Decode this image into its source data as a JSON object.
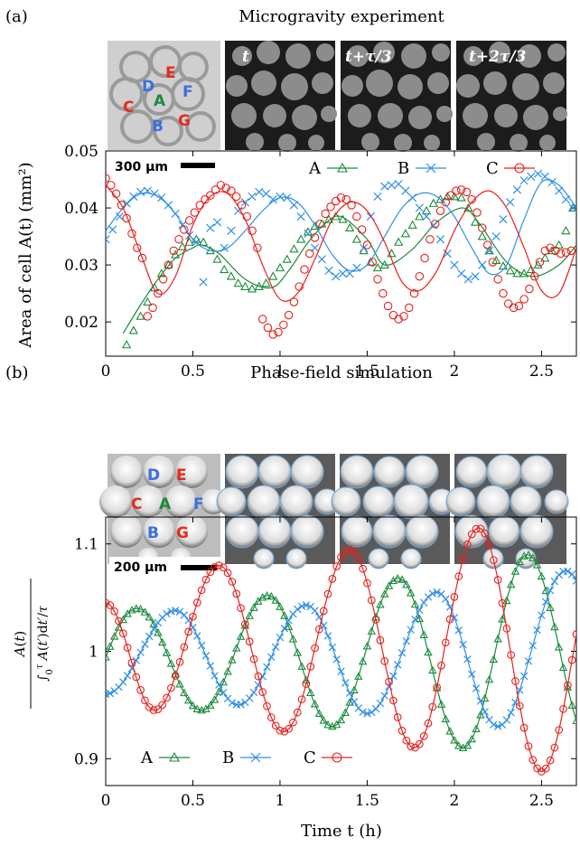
{
  "figure": {
    "panel_a_label": "(a)",
    "panel_b_label": "(b)"
  },
  "chart_data": [
    {
      "type": "scatter",
      "panel": "(a)",
      "title": "Microgravity experiment",
      "ylabel": "Area of cell A(t) (mm²)",
      "xlabel": "",
      "xlim": [
        0,
        2.7
      ],
      "ylim": [
        0.014,
        0.05
      ],
      "xticks": [
        0,
        0.5,
        1,
        1.5,
        2,
        2.5
      ],
      "xtick_labels": [
        "0",
        "0.5",
        "1",
        "1.5",
        "2",
        "2.5"
      ],
      "yticks": [
        0.02,
        0.03,
        0.04,
        0.05
      ],
      "ytick_labels": [
        "0.02",
        "0.03",
        "0.04",
        "0.05"
      ],
      "legend_position": "top-right",
      "scale_bar": "300 µm",
      "image_labels": [
        "t",
        "t+τ/3",
        "t+2τ/3"
      ],
      "cell_labels": [
        "A",
        "B",
        "C",
        "D",
        "E",
        "F",
        "G"
      ],
      "series": [
        {
          "name": "A",
          "color": "#1b8a3c",
          "marker": "triangle",
          "fit": {
            "x": [
              0.1,
              0.2,
              0.3,
              0.4,
              0.5,
              0.55,
              0.65,
              0.8,
              0.95,
              1.05,
              1.15,
              1.25,
              1.35,
              1.5,
              1.6,
              1.75,
              1.9,
              2.05,
              2.15,
              2.3,
              2.45,
              2.6,
              2.7
            ],
            "y": [
              0.018,
              0.023,
              0.0275,
              0.0312,
              0.033,
              0.0335,
              0.032,
              0.0275,
              0.026,
              0.029,
              0.0335,
              0.037,
              0.0385,
              0.0345,
              0.03,
              0.0325,
              0.0375,
              0.04,
              0.037,
              0.0305,
              0.028,
              0.03,
              0.0335
            ]
          },
          "data": {
            "x": [
              0.12,
              0.16,
              0.2,
              0.24,
              0.28,
              0.32,
              0.36,
              0.4,
              0.44,
              0.48,
              0.52,
              0.56,
              0.6,
              0.64,
              0.68,
              0.72,
              0.76,
              0.8,
              0.84,
              0.88,
              0.92,
              0.96,
              1.0,
              1.04,
              1.08,
              1.12,
              1.16,
              1.2,
              1.24,
              1.28,
              1.32,
              1.36,
              1.4,
              1.44,
              1.48,
              1.52,
              1.56,
              1.6,
              1.64,
              1.68,
              1.72,
              1.76,
              1.8,
              1.84,
              1.88,
              1.92,
              1.96,
              2.0,
              2.04,
              2.08,
              2.12,
              2.16,
              2.2,
              2.24,
              2.28,
              2.32,
              2.36,
              2.4,
              2.44,
              2.48,
              2.52,
              2.56,
              2.6,
              2.64,
              2.68
            ],
            "y": [
              0.016,
              0.0185,
              0.021,
              0.0235,
              0.026,
              0.0285,
              0.03,
              0.0318,
              0.0332,
              0.034,
              0.0345,
              0.034,
              0.0325,
              0.031,
              0.0292,
              0.028,
              0.0268,
              0.0262,
              0.0258,
              0.0262,
              0.0268,
              0.028,
              0.0295,
              0.031,
              0.0328,
              0.0345,
              0.0358,
              0.0368,
              0.0372,
              0.038,
              0.0385,
              0.038,
              0.0365,
              0.0345,
              0.0325,
              0.0305,
              0.0295,
              0.03,
              0.032,
              0.034,
              0.0355,
              0.037,
              0.0385,
              0.0395,
              0.0408,
              0.0415,
              0.042,
              0.042,
              0.0418,
              0.04,
              0.0375,
              0.035,
              0.0325,
              0.0308,
              0.0298,
              0.029,
              0.0285,
              0.0285,
              0.0292,
              0.03,
              0.0312,
              0.0325,
              0.0335,
              0.036,
              0.04
            ]
          }
        },
        {
          "name": "B",
          "color": "#2f8fe6",
          "marker": "cross",
          "fit": {
            "x": [
              0.0,
              0.1,
              0.2,
              0.3,
              0.4,
              0.5,
              0.6,
              0.7,
              0.8,
              0.9,
              1.0,
              1.1,
              1.2,
              1.3,
              1.4,
              1.5,
              1.6,
              1.7,
              1.8,
              1.9,
              2.0,
              2.1,
              2.2,
              2.3,
              2.4,
              2.5,
              2.6,
              2.7
            ],
            "y": [
              0.036,
              0.04,
              0.0425,
              0.042,
              0.039,
              0.0345,
              0.0325,
              0.033,
              0.036,
              0.0395,
              0.0418,
              0.041,
              0.037,
              0.0318,
              0.029,
              0.03,
              0.035,
              0.04,
              0.0425,
              0.042,
              0.0385,
              0.033,
              0.0285,
              0.03,
              0.038,
              0.0445,
              0.044,
              0.04
            ]
          },
          "data": {
            "x": [
              0.0,
              0.04,
              0.08,
              0.12,
              0.16,
              0.2,
              0.24,
              0.28,
              0.32,
              0.36,
              0.4,
              0.44,
              0.48,
              0.52,
              0.56,
              0.6,
              0.64,
              0.68,
              0.72,
              0.76,
              0.8,
              0.84,
              0.88,
              0.92,
              0.96,
              1.0,
              1.04,
              1.08,
              1.12,
              1.16,
              1.2,
              1.24,
              1.28,
              1.32,
              1.36,
              1.4,
              1.44,
              1.48,
              1.52,
              1.56,
              1.6,
              1.64,
              1.68,
              1.72,
              1.76,
              1.8,
              1.84,
              1.88,
              1.92,
              1.96,
              2.0,
              2.04,
              2.08,
              2.12,
              2.16,
              2.2,
              2.24,
              2.28,
              2.32,
              2.36,
              2.4,
              2.44,
              2.48,
              2.52,
              2.56,
              2.6,
              2.64,
              2.68
            ],
            "y": [
              0.0345,
              0.0362,
              0.0385,
              0.0408,
              0.042,
              0.0428,
              0.043,
              0.0425,
              0.0418,
              0.0405,
              0.039,
              0.037,
              0.0352,
              0.034,
              0.027,
              0.0365,
              0.0375,
              0.033,
              0.036,
              0.0395,
              0.041,
              0.042,
              0.0428,
              0.0425,
              0.0415,
              0.042,
              0.0418,
              0.0405,
              0.0385,
              0.0355,
              0.033,
              0.031,
              0.029,
              0.028,
              0.0285,
              0.0285,
              0.0295,
              0.033,
              0.0385,
              0.042,
              0.0438,
              0.044,
              0.0442,
              0.043,
              0.0418,
              0.04,
              0.0385,
              0.037,
              0.0345,
              0.032,
              0.03,
              0.0285,
              0.0275,
              0.028,
              0.03,
              0.0325,
              0.035,
              0.038,
              0.041,
              0.0432,
              0.0448,
              0.0455,
              0.046,
              0.0455,
              0.0445,
              0.043,
              0.0415,
              0.04
            ]
          }
        },
        {
          "name": "C",
          "color": "#e8201c",
          "marker": "circle",
          "fit": {
            "x": [
              0.0,
              0.1,
              0.2,
              0.3,
              0.4,
              0.5,
              0.6,
              0.7,
              0.8,
              0.9,
              1.0,
              1.1,
              1.2,
              1.3,
              1.4,
              1.5,
              1.6,
              1.7,
              1.8,
              1.9,
              2.0,
              2.1,
              2.2,
              2.3,
              2.4,
              2.5,
              2.6,
              2.7
            ],
            "y": [
              0.044,
              0.04,
              0.032,
              0.025,
              0.028,
              0.037,
              0.042,
              0.0425,
              0.038,
              0.03,
              0.024,
              0.025,
              0.031,
              0.038,
              0.041,
              0.0395,
              0.034,
              0.027,
              0.0255,
              0.029,
              0.036,
              0.041,
              0.043,
              0.04,
              0.033,
              0.0255,
              0.025,
              0.033
            ]
          },
          "data": {
            "x": [
              0.0,
              0.03,
              0.06,
              0.09,
              0.12,
              0.15,
              0.18,
              0.21,
              0.24,
              0.27,
              0.3,
              0.33,
              0.36,
              0.39,
              0.42,
              0.45,
              0.48,
              0.51,
              0.54,
              0.57,
              0.6,
              0.63,
              0.66,
              0.69,
              0.72,
              0.75,
              0.78,
              0.81,
              0.84,
              0.87,
              0.9,
              0.93,
              0.96,
              0.99,
              1.02,
              1.05,
              1.08,
              1.11,
              1.14,
              1.17,
              1.2,
              1.23,
              1.26,
              1.29,
              1.32,
              1.35,
              1.38,
              1.41,
              1.44,
              1.47,
              1.5,
              1.53,
              1.56,
              1.59,
              1.62,
              1.65,
              1.68,
              1.71,
              1.74,
              1.77,
              1.8,
              1.83,
              1.86,
              1.89,
              1.92,
              1.95,
              1.98,
              2.01,
              2.04,
              2.07,
              2.1,
              2.13,
              2.16,
              2.19,
              2.22,
              2.25,
              2.28,
              2.31,
              2.34,
              2.37,
              2.4,
              2.43,
              2.46,
              2.49,
              2.52,
              2.55,
              2.58,
              2.61,
              2.64,
              2.67
            ],
            "y": [
              0.0452,
              0.044,
              0.0425,
              0.0405,
              0.0382,
              0.0355,
              0.033,
              0.0312,
              0.021,
              0.0225,
              0.025,
              0.0275,
              0.03,
              0.0325,
              0.0345,
              0.0362,
              0.0378,
              0.0392,
              0.0405,
              0.0415,
              0.0422,
              0.0432,
              0.044,
              0.0435,
              0.043,
              0.042,
              0.0405,
              0.0385,
              0.036,
              0.033,
              0.0205,
              0.019,
              0.0178,
              0.0182,
              0.0195,
              0.0212,
              0.0235,
              0.0262,
              0.0292,
              0.032,
              0.0348,
              0.0372,
              0.039,
              0.0402,
              0.0412,
              0.0418,
              0.0415,
              0.0405,
              0.0385,
              0.0362,
              0.0335,
              0.0305,
              0.0275,
              0.025,
              0.0228,
              0.0212,
              0.0205,
              0.021,
              0.0225,
              0.025,
              0.028,
              0.0312,
              0.0345,
              0.0372,
              0.0395,
              0.041,
              0.0422,
              0.043,
              0.0432,
              0.0428,
              0.0415,
              0.0392,
              0.0365,
              0.0335,
              0.0305,
              0.0275,
              0.025,
              0.0232,
              0.0225,
              0.0228,
              0.024,
              0.0258,
              0.028,
              0.0305,
              0.0325,
              0.033,
              0.0325,
              0.032,
              0.0322,
              0.0325
            ]
          }
        }
      ]
    },
    {
      "type": "line",
      "panel": "(b)",
      "title": "Phase-field simulation",
      "ylabel": "A(t) / ∫₀^τ A(t′)dt′/τ",
      "xlabel": "Time t (h)",
      "xlim": [
        0,
        2.7
      ],
      "ylim": [
        0.875,
        1.125
      ],
      "xticks": [
        0,
        0.5,
        1,
        1.5,
        2,
        2.5
      ],
      "xtick_labels": [
        "0",
        "0.5",
        "1",
        "1.5",
        "2",
        "2.5"
      ],
      "yticks": [
        0.9,
        1.0,
        1.1
      ],
      "ytick_labels": [
        "0.9",
        "1",
        "1.1"
      ],
      "legend_position": "bottom-left",
      "scale_bar": "200 µm",
      "cell_labels": [
        "A",
        "B",
        "C",
        "D",
        "E",
        "F",
        "G"
      ],
      "series": [
        {
          "name": "A",
          "color": "#1b8a3c",
          "marker": "triangle",
          "period": 0.74,
          "phase_max_at": 0.18,
          "peaks": [
            {
              "x": 0.18,
              "y": 1.04
            },
            {
              "x": 0.93,
              "y": 1.052
            },
            {
              "x": 1.68,
              "y": 1.068
            },
            {
              "x": 2.42,
              "y": 1.09
            }
          ],
          "troughs": [
            {
              "x": 0.55,
              "y": 0.945
            },
            {
              "x": 1.3,
              "y": 0.93
            },
            {
              "x": 2.05,
              "y": 0.91
            }
          ]
        },
        {
          "name": "B",
          "color": "#2f8fe6",
          "marker": "cross",
          "period": 0.74,
          "peaks": [
            {
              "x": 0.4,
              "y": 1.038
            },
            {
              "x": 1.15,
              "y": 1.043
            },
            {
              "x": 1.9,
              "y": 1.055
            },
            {
              "x": 2.64,
              "y": 1.075
            }
          ],
          "troughs": [
            {
              "x": 0.0,
              "y": 0.96
            },
            {
              "x": 0.76,
              "y": 0.95
            },
            {
              "x": 1.5,
              "y": 0.942
            },
            {
              "x": 2.25,
              "y": 0.93
            }
          ]
        },
        {
          "name": "C",
          "color": "#e8201c",
          "marker": "circle",
          "period": 0.74,
          "peaks": [
            {
              "x": 0.0,
              "y": 1.045
            },
            {
              "x": 0.65,
              "y": 1.08
            },
            {
              "x": 1.4,
              "y": 1.095
            },
            {
              "x": 2.14,
              "y": 1.115
            }
          ],
          "troughs": [
            {
              "x": 0.28,
              "y": 0.945
            },
            {
              "x": 1.02,
              "y": 0.925
            },
            {
              "x": 1.77,
              "y": 0.91
            },
            {
              "x": 2.5,
              "y": 0.888
            }
          ]
        }
      ]
    }
  ]
}
